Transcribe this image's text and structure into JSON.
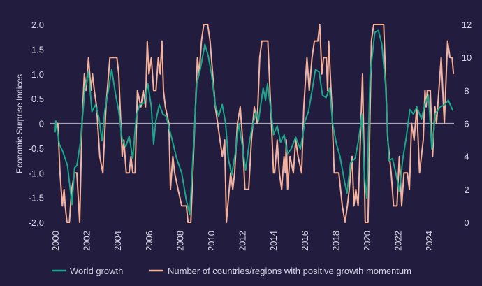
{
  "chart_data": {
    "type": "line",
    "title": "",
    "xlabel": "",
    "ylabel": "Economic Surprise Indices",
    "y2label": "",
    "xlim": [
      2000,
      2025.6
    ],
    "ylim": [
      -2.0,
      2.0
    ],
    "y2lim": [
      0,
      12
    ],
    "x_ticks": [
      "2000",
      "2002",
      "2004",
      "2006",
      "2008",
      "2010",
      "2012",
      "2014",
      "2016",
      "2018",
      "2020",
      "2022",
      "2024"
    ],
    "y_ticks": [
      "2.0",
      "1.5",
      "1.0",
      "0.5",
      "0",
      "-0.5",
      "-1.0",
      "-1.5",
      "-2.0"
    ],
    "y2_ticks": [
      "12",
      "10",
      "8",
      "6",
      "4",
      "2",
      "0"
    ],
    "grid": false,
    "zero_line": true,
    "legend_position": "bottom",
    "colors": {
      "background": "#221c3e",
      "world_growth": "#1aa68a",
      "countries": "#f4b19c",
      "zero_line": "#a9a5b8",
      "text": "#d6d2e4"
    },
    "series": [
      {
        "name": "World growth",
        "axis": "left",
        "x": [
          2000.0,
          2000.04,
          2000.27,
          2000.49,
          2000.79,
          2000.94,
          2001.08,
          2001.24,
          2001.39,
          2001.61,
          2001.91,
          2002.14,
          2002.36,
          2002.59,
          2002.81,
          2003.0,
          2003.18,
          2003.41,
          2003.63,
          2003.86,
          2004.08,
          2004.3,
          2004.53,
          2004.75,
          2004.98,
          2005.2,
          2005.43,
          2005.73,
          2005.95,
          2006.17,
          2006.32,
          2006.46,
          2006.68,
          2006.91,
          2007.13,
          2007.35,
          2007.58,
          2007.8,
          2008.12,
          2008.42,
          2008.64,
          2008.87,
          2009.09,
          2009.31,
          2009.61,
          2009.82,
          2010.04,
          2010.27,
          2010.49,
          2010.72,
          2010.94,
          2011.11,
          2011.33,
          2011.56,
          2011.78,
          2012.0,
          2012.23,
          2012.45,
          2012.6,
          2012.9,
          2013.05,
          2013.35,
          2013.5,
          2013.63,
          2013.86,
          2014.02,
          2014.25,
          2014.47,
          2014.7,
          2014.92,
          2015.14,
          2015.44,
          2015.74,
          2016.04,
          2016.26,
          2016.49,
          2016.71,
          2016.94,
          2017.16,
          2017.39,
          2017.61,
          2017.83,
          2018.06,
          2018.28,
          2018.58,
          2018.73,
          2018.96,
          2019.25,
          2019.48,
          2019.7,
          2019.85,
          2020.0,
          2020.22,
          2020.52,
          2020.75,
          2020.97,
          2021.2,
          2021.42,
          2021.65,
          2021.87,
          2022.09,
          2022.32,
          2022.54,
          2022.77,
          2022.99,
          2023.22,
          2023.51,
          2023.72,
          2023.96,
          2024.18,
          2024.41,
          2024.71,
          2025.01,
          2025.23,
          2025.53
        ],
        "y": [
          -0.18,
          0.05,
          -0.42,
          -0.57,
          -0.85,
          -1.27,
          -1.64,
          -0.9,
          -0.85,
          -0.4,
          0.71,
          1.05,
          0.24,
          0.38,
          0.1,
          -0.35,
          0.24,
          0.66,
          1.09,
          0.61,
          0.24,
          -0.33,
          -0.47,
          -0.26,
          -0.71,
          0.14,
          0.38,
          0.42,
          0.8,
          0.33,
          -0.42,
          0.05,
          0.38,
          0.19,
          0.14,
          -0.14,
          -0.42,
          -0.71,
          -1.0,
          -1.56,
          -1.84,
          -0.52,
          0.8,
          1.09,
          1.6,
          1.37,
          0.99,
          0.38,
          0.14,
          0.38,
          0.0,
          -0.71,
          -1.04,
          -0.61,
          0.0,
          -0.42,
          -0.94,
          -0.42,
          -0.14,
          0.24,
          0.05,
          0.71,
          0.47,
          0.8,
          0.24,
          -0.23,
          -0.05,
          -0.38,
          -0.23,
          -0.61,
          -0.52,
          -0.28,
          -0.52,
          0.05,
          0.24,
          0.66,
          1.09,
          1.04,
          0.57,
          0.52,
          0.71,
          -0.05,
          -0.42,
          -0.66,
          -1.18,
          -1.41,
          -0.8,
          -0.71,
          -0.33,
          0.19,
          -1.08,
          -1.51,
          0.99,
          1.84,
          1.88,
          1.6,
          0.8,
          -0.75,
          -0.71,
          -1.0,
          -1.37,
          -0.71,
          -0.28,
          0.28,
          0.19,
          0.33,
          0.09,
          0.38,
          0.57,
          -0.52,
          0.19,
          0.33,
          0.38,
          0.47,
          0.26
        ]
      },
      {
        "name": "Number of countries/regions with positive growth momentum",
        "axis": "right",
        "x": [
          2000.0,
          2000.17,
          2000.31,
          2000.46,
          2000.57,
          2000.64,
          2000.76,
          2000.91,
          2001.06,
          2001.24,
          2001.39,
          2001.57,
          2001.72,
          2001.87,
          2001.99,
          2002.14,
          2002.29,
          2002.39,
          2002.51,
          2002.66,
          2002.86,
          2003.06,
          2003.26,
          2003.51,
          2003.96,
          2004.08,
          2004.3,
          2004.41,
          2004.56,
          2004.75,
          2004.86,
          2004.98,
          2005.13,
          2005.28,
          2005.5,
          2005.65,
          2005.8,
          2005.91,
          2006.02,
          2006.17,
          2006.32,
          2006.47,
          2006.62,
          2006.74,
          2006.85,
          2006.95,
          2007.07,
          2007.3,
          2007.4,
          2007.55,
          2007.67,
          2007.89,
          2008.12,
          2008.42,
          2008.53,
          2008.71,
          2009.13,
          2009.24,
          2009.39,
          2009.54,
          2009.79,
          2009.94,
          2010.28,
          2010.43,
          2010.58,
          2010.73,
          2010.88,
          2010.99,
          2011.26,
          2011.4,
          2011.52,
          2011.7,
          2011.88,
          2012.03,
          2012.18,
          2012.42,
          2012.6,
          2012.78,
          2012.97,
          2013.13,
          2013.27,
          2013.65,
          2014.02,
          2014.09,
          2014.25,
          2014.39,
          2014.54,
          2014.69,
          2014.77,
          2014.84,
          2014.92,
          2015.07,
          2015.29,
          2015.44,
          2015.59,
          2015.82,
          2015.96,
          2016.16,
          2016.31,
          2016.49,
          2016.64,
          2016.86,
          2016.98,
          2017.12,
          2017.23,
          2017.41,
          2017.49,
          2017.56,
          2017.76,
          2017.91,
          2018.21,
          2018.43,
          2018.61,
          2018.76,
          2018.88,
          2019.06,
          2019.18,
          2019.3,
          2019.45,
          2019.73,
          2019.9,
          2020.08,
          2020.3,
          2020.45,
          2021.09,
          2021.35,
          2021.57,
          2021.72,
          2021.94,
          2022.09,
          2022.24,
          2022.39,
          2022.61,
          2022.74,
          2022.88,
          2023.04,
          2023.21,
          2023.39,
          2023.63,
          2023.74,
          2023.81,
          2023.89,
          2024.08,
          2024.23,
          2024.38,
          2024.48,
          2024.78,
          2024.98,
          2025.19,
          2025.34,
          2025.48,
          2025.57
        ],
        "y": [
          6,
          6,
          3,
          1,
          2,
          1,
          0,
          0,
          2,
          3,
          3,
          0,
          6,
          9,
          8,
          10,
          8,
          9,
          8,
          7,
          4,
          3,
          7,
          10,
          10,
          9,
          4,
          5,
          3,
          3,
          4,
          3,
          3,
          8,
          7,
          8,
          7,
          11,
          9,
          10,
          8,
          8,
          10,
          9,
          11,
          8,
          7,
          6,
          2,
          4,
          3,
          2,
          1,
          1,
          0,
          0,
          10,
          9,
          11,
          12,
          12,
          11,
          7,
          6,
          5,
          4,
          5,
          0,
          3,
          2,
          3,
          6,
          7,
          5,
          2,
          2,
          5,
          7,
          6,
          10,
          11,
          11,
          3,
          3,
          5,
          3,
          2,
          4,
          3,
          5,
          2,
          4,
          3,
          5,
          4,
          3,
          7,
          10,
          8,
          10,
          11,
          11,
          12,
          9,
          10,
          10,
          8,
          11,
          7,
          3,
          3,
          1,
          0,
          1,
          2,
          4,
          1,
          2,
          1,
          9,
          0,
          0,
          11,
          12,
          12,
          5,
          3,
          1,
          1,
          4,
          1,
          3,
          3,
          2,
          6,
          5,
          7,
          3,
          5,
          8,
          7,
          8,
          8,
          4,
          7,
          6,
          10,
          6,
          11,
          10,
          10,
          9
        ]
      }
    ]
  }
}
